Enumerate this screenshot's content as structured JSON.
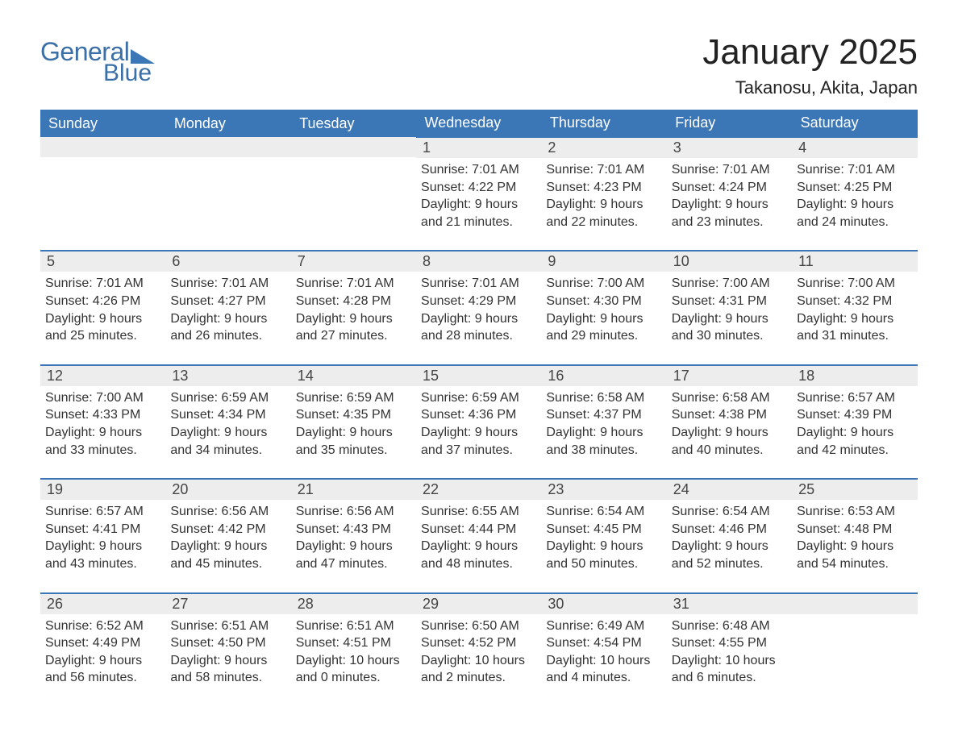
{
  "logo": {
    "text1": "General",
    "text2": "Blue"
  },
  "title": "January 2025",
  "location": "Takanosu, Akita, Japan",
  "colors": {
    "header_bg": "#3b77b6",
    "header_text": "#ffffff",
    "daynum_bg": "#ededed",
    "border": "#3b77b6",
    "logo": "#3b6fa8",
    "body_text": "#333333"
  },
  "weekdays": [
    "Sunday",
    "Monday",
    "Tuesday",
    "Wednesday",
    "Thursday",
    "Friday",
    "Saturday"
  ],
  "leading_empty": 3,
  "days": [
    {
      "n": 1,
      "sunrise": "7:01 AM",
      "sunset": "4:22 PM",
      "dl_h": 9,
      "dl_m": 21
    },
    {
      "n": 2,
      "sunrise": "7:01 AM",
      "sunset": "4:23 PM",
      "dl_h": 9,
      "dl_m": 22
    },
    {
      "n": 3,
      "sunrise": "7:01 AM",
      "sunset": "4:24 PM",
      "dl_h": 9,
      "dl_m": 23
    },
    {
      "n": 4,
      "sunrise": "7:01 AM",
      "sunset": "4:25 PM",
      "dl_h": 9,
      "dl_m": 24
    },
    {
      "n": 5,
      "sunrise": "7:01 AM",
      "sunset": "4:26 PM",
      "dl_h": 9,
      "dl_m": 25
    },
    {
      "n": 6,
      "sunrise": "7:01 AM",
      "sunset": "4:27 PM",
      "dl_h": 9,
      "dl_m": 26
    },
    {
      "n": 7,
      "sunrise": "7:01 AM",
      "sunset": "4:28 PM",
      "dl_h": 9,
      "dl_m": 27
    },
    {
      "n": 8,
      "sunrise": "7:01 AM",
      "sunset": "4:29 PM",
      "dl_h": 9,
      "dl_m": 28
    },
    {
      "n": 9,
      "sunrise": "7:00 AM",
      "sunset": "4:30 PM",
      "dl_h": 9,
      "dl_m": 29
    },
    {
      "n": 10,
      "sunrise": "7:00 AM",
      "sunset": "4:31 PM",
      "dl_h": 9,
      "dl_m": 30
    },
    {
      "n": 11,
      "sunrise": "7:00 AM",
      "sunset": "4:32 PM",
      "dl_h": 9,
      "dl_m": 31
    },
    {
      "n": 12,
      "sunrise": "7:00 AM",
      "sunset": "4:33 PM",
      "dl_h": 9,
      "dl_m": 33
    },
    {
      "n": 13,
      "sunrise": "6:59 AM",
      "sunset": "4:34 PM",
      "dl_h": 9,
      "dl_m": 34
    },
    {
      "n": 14,
      "sunrise": "6:59 AM",
      "sunset": "4:35 PM",
      "dl_h": 9,
      "dl_m": 35
    },
    {
      "n": 15,
      "sunrise": "6:59 AM",
      "sunset": "4:36 PM",
      "dl_h": 9,
      "dl_m": 37
    },
    {
      "n": 16,
      "sunrise": "6:58 AM",
      "sunset": "4:37 PM",
      "dl_h": 9,
      "dl_m": 38
    },
    {
      "n": 17,
      "sunrise": "6:58 AM",
      "sunset": "4:38 PM",
      "dl_h": 9,
      "dl_m": 40
    },
    {
      "n": 18,
      "sunrise": "6:57 AM",
      "sunset": "4:39 PM",
      "dl_h": 9,
      "dl_m": 42
    },
    {
      "n": 19,
      "sunrise": "6:57 AM",
      "sunset": "4:41 PM",
      "dl_h": 9,
      "dl_m": 43
    },
    {
      "n": 20,
      "sunrise": "6:56 AM",
      "sunset": "4:42 PM",
      "dl_h": 9,
      "dl_m": 45
    },
    {
      "n": 21,
      "sunrise": "6:56 AM",
      "sunset": "4:43 PM",
      "dl_h": 9,
      "dl_m": 47
    },
    {
      "n": 22,
      "sunrise": "6:55 AM",
      "sunset": "4:44 PM",
      "dl_h": 9,
      "dl_m": 48
    },
    {
      "n": 23,
      "sunrise": "6:54 AM",
      "sunset": "4:45 PM",
      "dl_h": 9,
      "dl_m": 50
    },
    {
      "n": 24,
      "sunrise": "6:54 AM",
      "sunset": "4:46 PM",
      "dl_h": 9,
      "dl_m": 52
    },
    {
      "n": 25,
      "sunrise": "6:53 AM",
      "sunset": "4:48 PM",
      "dl_h": 9,
      "dl_m": 54
    },
    {
      "n": 26,
      "sunrise": "6:52 AM",
      "sunset": "4:49 PM",
      "dl_h": 9,
      "dl_m": 56
    },
    {
      "n": 27,
      "sunrise": "6:51 AM",
      "sunset": "4:50 PM",
      "dl_h": 9,
      "dl_m": 58
    },
    {
      "n": 28,
      "sunrise": "6:51 AM",
      "sunset": "4:51 PM",
      "dl_h": 10,
      "dl_m": 0
    },
    {
      "n": 29,
      "sunrise": "6:50 AM",
      "sunset": "4:52 PM",
      "dl_h": 10,
      "dl_m": 2
    },
    {
      "n": 30,
      "sunrise": "6:49 AM",
      "sunset": "4:54 PM",
      "dl_h": 10,
      "dl_m": 4
    },
    {
      "n": 31,
      "sunrise": "6:48 AM",
      "sunset": "4:55 PM",
      "dl_h": 10,
      "dl_m": 6
    }
  ],
  "labels": {
    "sunrise": "Sunrise",
    "sunset": "Sunset",
    "daylight": "Daylight",
    "hours": "hours",
    "and": "and",
    "minutes": "minutes."
  }
}
